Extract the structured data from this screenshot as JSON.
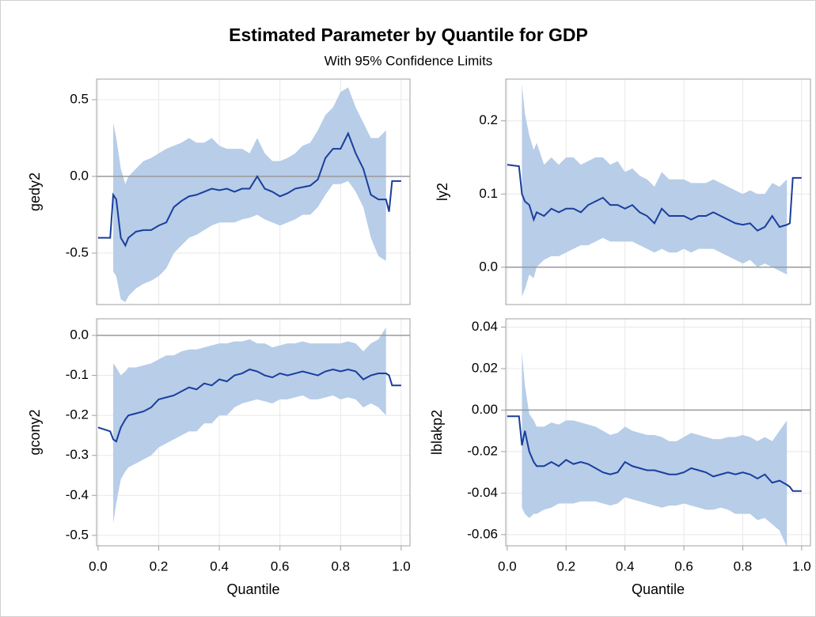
{
  "title": "Estimated Parameter by Quantile for GDP",
  "subtitle": "With 95% Confidence Limits",
  "chart_data": [
    {
      "type": "band-line",
      "ylabel": "gedy2",
      "xtick_labels": false,
      "xlim": [
        -0.005,
        1.029
      ],
      "ylim": [
        -0.835,
        0.634
      ],
      "xticks": [
        {
          "value": 0,
          "label": "0.0"
        },
        0.2,
        0.4,
        0.6,
        0.8,
        {
          "value": 1,
          "label": "1.0"
        }
      ],
      "yticks": [
        {
          "value": -0.5,
          "label": "-0.5"
        },
        {
          "value": 0,
          "label": "0.0"
        },
        0.5
      ],
      "grid": true,
      "refline": 0,
      "x": [
        0,
        0.04,
        0.05,
        0.06,
        0.075,
        0.09,
        0.1,
        0.125,
        0.15,
        0.175,
        0.2,
        0.225,
        0.25,
        0.275,
        0.3,
        0.325,
        0.35,
        0.375,
        0.4,
        0.425,
        0.45,
        0.475,
        0.5,
        0.525,
        0.55,
        0.575,
        0.6,
        0.625,
        0.65,
        0.675,
        0.7,
        0.725,
        0.75,
        0.775,
        0.8,
        0.825,
        0.85,
        0.875,
        0.9,
        0.925,
        0.95,
        0.96,
        0.97,
        1.0
      ],
      "line": {
        "color": "#1a3e9c",
        "values": [
          -0.4,
          -0.4,
          -0.12,
          -0.15,
          -0.4,
          -0.45,
          -0.4,
          -0.36,
          -0.35,
          -0.35,
          -0.32,
          -0.3,
          -0.2,
          -0.16,
          -0.13,
          -0.12,
          -0.1,
          -0.08,
          -0.09,
          -0.08,
          -0.1,
          -0.08,
          -0.08,
          0.0,
          -0.08,
          -0.1,
          -0.13,
          -0.11,
          -0.08,
          -0.07,
          -0.06,
          -0.02,
          0.12,
          0.18,
          0.18,
          0.28,
          0.15,
          0.05,
          -0.12,
          -0.15,
          -0.15,
          -0.23,
          -0.03,
          -0.03
        ]
      },
      "band": {
        "color": "#b7cde8",
        "lower": [
          null,
          null,
          -0.62,
          -0.65,
          -0.8,
          -0.82,
          -0.78,
          -0.73,
          -0.7,
          -0.68,
          -0.65,
          -0.6,
          -0.5,
          -0.45,
          -0.4,
          -0.38,
          -0.35,
          -0.32,
          -0.3,
          -0.3,
          -0.3,
          -0.28,
          -0.27,
          -0.25,
          -0.28,
          -0.3,
          -0.32,
          -0.3,
          -0.28,
          -0.25,
          -0.25,
          -0.2,
          -0.12,
          -0.05,
          -0.05,
          -0.03,
          -0.1,
          -0.2,
          -0.4,
          -0.52,
          -0.55,
          null,
          null,
          null
        ],
        "upper": [
          null,
          null,
          0.35,
          0.25,
          0.05,
          -0.05,
          0.0,
          0.05,
          0.1,
          0.12,
          0.15,
          0.18,
          0.2,
          0.22,
          0.25,
          0.22,
          0.22,
          0.25,
          0.2,
          0.18,
          0.18,
          0.18,
          0.15,
          0.25,
          0.15,
          0.1,
          0.1,
          0.12,
          0.15,
          0.2,
          0.22,
          0.3,
          0.4,
          0.45,
          0.55,
          0.58,
          0.45,
          0.35,
          0.25,
          0.25,
          0.3,
          null,
          null,
          null
        ]
      }
    },
    {
      "type": "band-line",
      "ylabel": "ly2",
      "xtick_labels": false,
      "xlim": [
        -0.005,
        1.03
      ],
      "ylim": [
        -0.051,
        0.257
      ],
      "xticks": [
        {
          "value": 0,
          "label": "0.0"
        },
        0.2,
        0.4,
        0.6,
        0.8,
        {
          "value": 1,
          "label": "1.0"
        }
      ],
      "yticks": [
        {
          "value": 0,
          "label": "0.0"
        },
        0.1,
        0.2
      ],
      "grid": true,
      "refline": 0,
      "x": [
        0,
        0.04,
        0.05,
        0.06,
        0.075,
        0.09,
        0.1,
        0.125,
        0.15,
        0.175,
        0.2,
        0.225,
        0.25,
        0.275,
        0.3,
        0.325,
        0.35,
        0.375,
        0.4,
        0.425,
        0.45,
        0.475,
        0.5,
        0.525,
        0.55,
        0.575,
        0.6,
        0.625,
        0.65,
        0.675,
        0.7,
        0.725,
        0.75,
        0.775,
        0.8,
        0.825,
        0.85,
        0.875,
        0.9,
        0.925,
        0.95,
        0.96,
        0.97,
        1.0
      ],
      "line": {
        "color": "#1a3e9c",
        "values": [
          0.14,
          0.138,
          0.1,
          0.09,
          0.085,
          0.065,
          0.075,
          0.07,
          0.08,
          0.075,
          0.08,
          0.08,
          0.075,
          0.085,
          0.09,
          0.095,
          0.085,
          0.085,
          0.08,
          0.085,
          0.075,
          0.07,
          0.06,
          0.08,
          0.07,
          0.07,
          0.07,
          0.065,
          0.07,
          0.07,
          0.075,
          0.07,
          0.065,
          0.06,
          0.058,
          0.06,
          0.05,
          0.055,
          0.07,
          0.055,
          0.058,
          0.06,
          0.122,
          0.122
        ]
      },
      "band": {
        "color": "#b7cde8",
        "lower": [
          null,
          null,
          -0.04,
          -0.03,
          -0.01,
          -0.015,
          0.0,
          0.01,
          0.015,
          0.015,
          0.02,
          0.025,
          0.03,
          0.03,
          0.035,
          0.04,
          0.035,
          0.035,
          0.035,
          0.035,
          0.03,
          0.025,
          0.02,
          0.025,
          0.02,
          0.02,
          0.025,
          0.02,
          0.025,
          0.025,
          0.025,
          0.02,
          0.015,
          0.01,
          0.005,
          0.01,
          0.0,
          0.005,
          0.0,
          -0.005,
          -0.01,
          null,
          null,
          null
        ],
        "upper": [
          null,
          null,
          0.25,
          0.21,
          0.18,
          0.16,
          0.17,
          0.14,
          0.15,
          0.14,
          0.15,
          0.15,
          0.14,
          0.145,
          0.15,
          0.15,
          0.14,
          0.145,
          0.13,
          0.135,
          0.125,
          0.12,
          0.11,
          0.13,
          0.12,
          0.12,
          0.12,
          0.115,
          0.115,
          0.115,
          0.12,
          0.115,
          0.11,
          0.105,
          0.1,
          0.105,
          0.1,
          0.1,
          0.115,
          0.11,
          0.12,
          null,
          null,
          null
        ]
      }
    },
    {
      "type": "band-line",
      "ylabel": "gcony2",
      "xlabel": "Quantile",
      "xtick_labels": true,
      "xlim": [
        -0.005,
        1.029
      ],
      "ylim": [
        -0.526,
        0.0415
      ],
      "xticks": [
        {
          "value": 0,
          "label": "0.0"
        },
        0.2,
        0.4,
        0.6,
        0.8,
        {
          "value": 1,
          "label": "1.0"
        }
      ],
      "yticks": [
        -0.5,
        -0.4,
        -0.3,
        -0.2,
        -0.1,
        {
          "value": 0,
          "label": "0.0"
        }
      ],
      "grid": true,
      "refline": 0,
      "x": [
        0,
        0.04,
        0.05,
        0.06,
        0.075,
        0.09,
        0.1,
        0.125,
        0.15,
        0.175,
        0.2,
        0.225,
        0.25,
        0.275,
        0.3,
        0.325,
        0.35,
        0.375,
        0.4,
        0.425,
        0.45,
        0.475,
        0.5,
        0.525,
        0.55,
        0.575,
        0.6,
        0.625,
        0.65,
        0.675,
        0.7,
        0.725,
        0.75,
        0.775,
        0.8,
        0.825,
        0.85,
        0.875,
        0.9,
        0.925,
        0.95,
        0.96,
        0.97,
        1.0
      ],
      "line": {
        "color": "#1a3e9c",
        "values": [
          -0.23,
          -0.24,
          -0.26,
          -0.265,
          -0.23,
          -0.21,
          -0.2,
          -0.195,
          -0.19,
          -0.18,
          -0.16,
          -0.155,
          -0.15,
          -0.14,
          -0.13,
          -0.135,
          -0.12,
          -0.125,
          -0.11,
          -0.115,
          -0.1,
          -0.095,
          -0.085,
          -0.09,
          -0.1,
          -0.105,
          -0.095,
          -0.1,
          -0.095,
          -0.09,
          -0.095,
          -0.1,
          -0.09,
          -0.085,
          -0.09,
          -0.085,
          -0.09,
          -0.11,
          -0.1,
          -0.095,
          -0.095,
          -0.1,
          -0.125,
          -0.125
        ]
      },
      "band": {
        "color": "#b7cde8",
        "lower": [
          null,
          null,
          -0.47,
          -0.42,
          -0.36,
          -0.34,
          -0.33,
          -0.32,
          -0.31,
          -0.3,
          -0.28,
          -0.27,
          -0.26,
          -0.25,
          -0.24,
          -0.24,
          -0.22,
          -0.22,
          -0.2,
          -0.2,
          -0.18,
          -0.17,
          -0.165,
          -0.16,
          -0.165,
          -0.17,
          -0.16,
          -0.16,
          -0.155,
          -0.15,
          -0.16,
          -0.16,
          -0.155,
          -0.15,
          -0.16,
          -0.155,
          -0.16,
          -0.18,
          -0.17,
          -0.18,
          -0.2,
          null,
          null,
          null
        ],
        "upper": [
          null,
          null,
          -0.07,
          -0.08,
          -0.1,
          -0.09,
          -0.08,
          -0.08,
          -0.075,
          -0.07,
          -0.06,
          -0.05,
          -0.05,
          -0.04,
          -0.035,
          -0.035,
          -0.03,
          -0.025,
          -0.02,
          -0.02,
          -0.015,
          -0.015,
          -0.01,
          -0.02,
          -0.02,
          -0.03,
          -0.025,
          -0.02,
          -0.02,
          -0.015,
          -0.02,
          -0.02,
          -0.02,
          -0.02,
          -0.02,
          -0.015,
          -0.02,
          -0.04,
          -0.02,
          -0.01,
          0.02,
          null,
          null,
          null
        ]
      }
    },
    {
      "type": "band-line",
      "ylabel": "lblakp2",
      "xlabel": "Quantile",
      "xtick_labels": true,
      "xlim": [
        -0.005,
        1.03
      ],
      "ylim": [
        -0.0654,
        0.044
      ],
      "xticks": [
        {
          "value": 0,
          "label": "0.0"
        },
        0.2,
        0.4,
        0.6,
        0.8,
        {
          "value": 1,
          "label": "1.0"
        }
      ],
      "yticks": [
        -0.06,
        -0.04,
        -0.02,
        {
          "value": 0,
          "label": "0.00"
        },
        0.02,
        0.04
      ],
      "grid": true,
      "refline": 0,
      "x": [
        0,
        0.04,
        0.05,
        0.06,
        0.075,
        0.09,
        0.1,
        0.125,
        0.15,
        0.175,
        0.2,
        0.225,
        0.25,
        0.275,
        0.3,
        0.325,
        0.35,
        0.375,
        0.4,
        0.425,
        0.45,
        0.475,
        0.5,
        0.525,
        0.55,
        0.575,
        0.6,
        0.625,
        0.65,
        0.675,
        0.7,
        0.725,
        0.75,
        0.775,
        0.8,
        0.825,
        0.85,
        0.875,
        0.9,
        0.925,
        0.95,
        0.96,
        0.97,
        1.0
      ],
      "line": {
        "color": "#1a3e9c",
        "values": [
          -0.003,
          -0.003,
          -0.017,
          -0.01,
          -0.02,
          -0.025,
          -0.027,
          -0.027,
          -0.025,
          -0.027,
          -0.024,
          -0.026,
          -0.025,
          -0.026,
          -0.028,
          -0.03,
          -0.031,
          -0.03,
          -0.025,
          -0.027,
          -0.028,
          -0.029,
          -0.029,
          -0.03,
          -0.031,
          -0.031,
          -0.03,
          -0.028,
          -0.029,
          -0.03,
          -0.032,
          -0.031,
          -0.03,
          -0.031,
          -0.03,
          -0.031,
          -0.033,
          -0.031,
          -0.035,
          -0.034,
          -0.036,
          -0.037,
          -0.039,
          -0.039
        ]
      },
      "band": {
        "color": "#b7cde8",
        "lower": [
          null,
          null,
          -0.047,
          -0.05,
          -0.052,
          -0.05,
          -0.05,
          -0.048,
          -0.047,
          -0.045,
          -0.045,
          -0.045,
          -0.044,
          -0.044,
          -0.044,
          -0.045,
          -0.046,
          -0.045,
          -0.042,
          -0.043,
          -0.044,
          -0.045,
          -0.046,
          -0.047,
          -0.046,
          -0.046,
          -0.045,
          -0.046,
          -0.047,
          -0.048,
          -0.048,
          -0.047,
          -0.048,
          -0.05,
          -0.05,
          -0.05,
          -0.053,
          -0.052,
          -0.055,
          -0.058,
          -0.066,
          null,
          null,
          null
        ],
        "upper": [
          null,
          null,
          0.028,
          0.012,
          -0.002,
          -0.005,
          -0.008,
          -0.008,
          -0.006,
          -0.007,
          -0.005,
          -0.005,
          -0.006,
          -0.007,
          -0.008,
          -0.01,
          -0.012,
          -0.011,
          -0.008,
          -0.01,
          -0.011,
          -0.012,
          -0.012,
          -0.013,
          -0.015,
          -0.015,
          -0.013,
          -0.011,
          -0.012,
          -0.013,
          -0.014,
          -0.014,
          -0.013,
          -0.013,
          -0.012,
          -0.013,
          -0.015,
          -0.013,
          -0.015,
          -0.01,
          -0.005,
          null,
          null,
          null
        ]
      }
    }
  ]
}
